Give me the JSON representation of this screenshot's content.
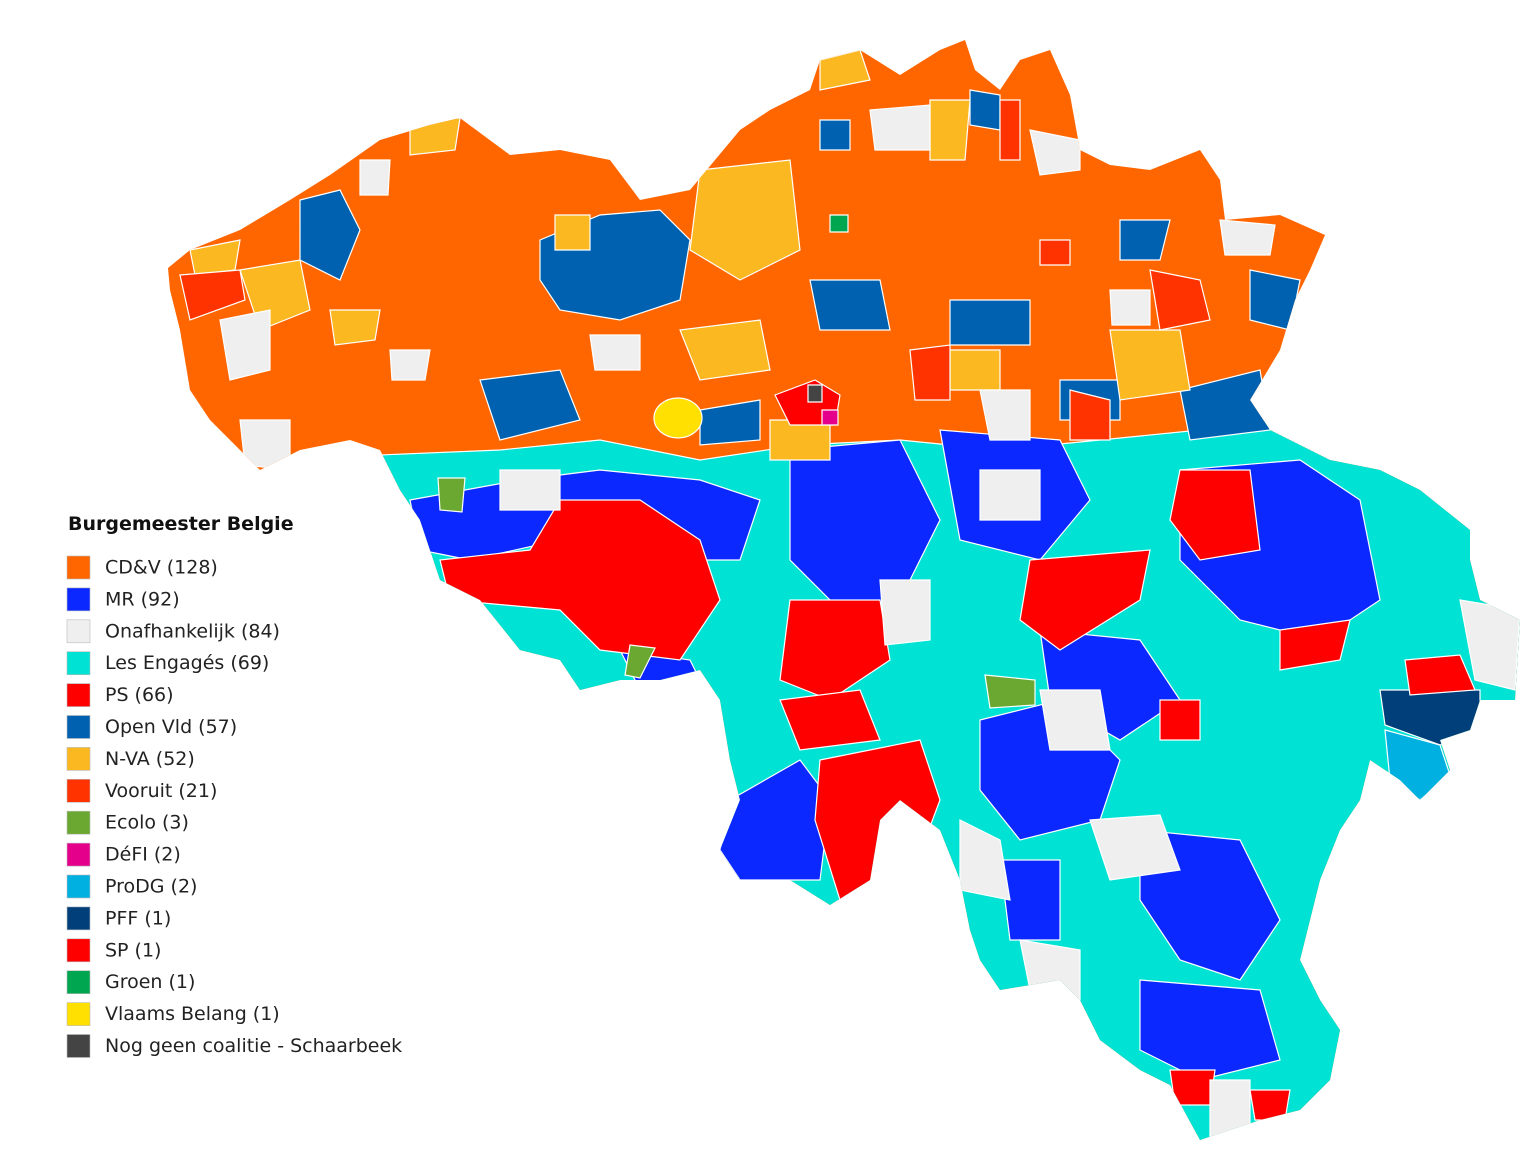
{
  "legend": {
    "title": "Burgemeester Belgie",
    "items": [
      {
        "label": "CD&V (128)",
        "color": "#ff6600"
      },
      {
        "label": "MR (92)",
        "color": "#0a28ff"
      },
      {
        "label": "Onafhankelijk (84)",
        "color": "#efefef"
      },
      {
        "label": "Les Engagés (69)",
        "color": "#00e3d4"
      },
      {
        "label": "PS (66)",
        "color": "#ff0000"
      },
      {
        "label": "Open Vld (57)",
        "color": "#0061b0"
      },
      {
        "label": "N-VA (52)",
        "color": "#fbb820"
      },
      {
        "label": "Vooruit (21)",
        "color": "#ff3300"
      },
      {
        "label": "Ecolo (3)",
        "color": "#6aa832"
      },
      {
        "label": "DéFI (2)",
        "color": "#e5008c"
      },
      {
        "label": "ProDG (2)",
        "color": "#00b0e0"
      },
      {
        "label": "PFF (1)",
        "color": "#003f7a"
      },
      {
        "label": "SP (1)",
        "color": "#ff0000"
      },
      {
        "label": "Groen (1)",
        "color": "#00a650"
      },
      {
        "label": "Vlaams Belang (1)",
        "color": "#ffe000"
      },
      {
        "label": "Nog geen coalitie - Schaarbeek",
        "color": "#444444"
      }
    ]
  }
}
